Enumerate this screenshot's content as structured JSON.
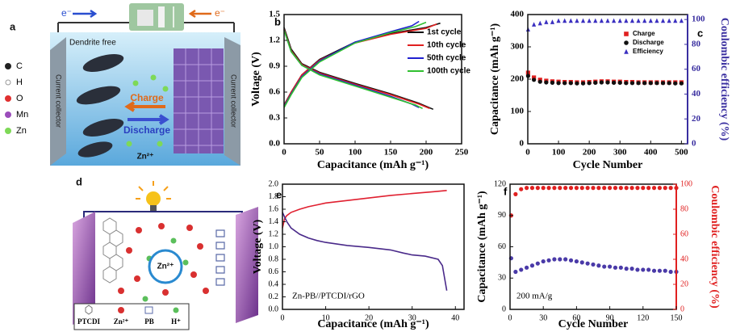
{
  "chart_data": [
    {
      "type": "line",
      "label": "b",
      "x_label": "Capacitance (mAh g⁻¹)",
      "y_label": "Voltage (V)",
      "xlim": [
        0,
        250
      ],
      "xticks": [
        0,
        50,
        100,
        150,
        200,
        250
      ],
      "ylim": [
        0,
        1.5
      ],
      "yticks": [
        {
          "value": 0,
          "label": "0.0"
        },
        0.3,
        0.6,
        0.9,
        1.2,
        1.5
      ],
      "legend": "upper right",
      "series": [
        {
          "name": "1st cycle",
          "color": "#111111",
          "x": [
            0,
            10,
            25,
            50,
            100,
            150,
            190,
            210,
            null,
            0,
            10,
            25,
            50,
            100,
            150,
            200,
            220
          ],
          "values": [
            1.35,
            1.1,
            0.93,
            0.83,
            0.7,
            0.58,
            0.47,
            0.4,
            null,
            0.45,
            0.6,
            0.8,
            0.98,
            1.18,
            1.28,
            1.35,
            1.4
          ]
        },
        {
          "name": "10th cycle",
          "color": "#e02020",
          "x": [
            0,
            10,
            25,
            50,
            100,
            150,
            190,
            205,
            null,
            0,
            10,
            25,
            50,
            100,
            150,
            200,
            215
          ],
          "values": [
            1.33,
            1.08,
            0.92,
            0.82,
            0.69,
            0.57,
            0.46,
            0.41,
            null,
            0.44,
            0.6,
            0.8,
            0.97,
            1.17,
            1.27,
            1.34,
            1.39
          ]
        },
        {
          "name": "50th cycle",
          "color": "#2020d0",
          "x": [
            0,
            10,
            25,
            50,
            100,
            150,
            180,
            190,
            null,
            0,
            10,
            25,
            50,
            100,
            150,
            180,
            190
          ],
          "values": [
            1.32,
            1.07,
            0.91,
            0.81,
            0.68,
            0.55,
            0.46,
            0.42,
            null,
            0.43,
            0.58,
            0.78,
            0.96,
            1.18,
            1.3,
            1.37,
            1.42
          ]
        },
        {
          "name": "100th cycle",
          "color": "#30c030",
          "x": [
            0,
            10,
            25,
            50,
            100,
            150,
            185,
            195,
            null,
            0,
            10,
            25,
            50,
            100,
            150,
            185,
            200
          ],
          "values": [
            1.32,
            1.07,
            0.91,
            0.8,
            0.67,
            0.54,
            0.45,
            0.41,
            null,
            0.42,
            0.57,
            0.77,
            0.95,
            1.17,
            1.29,
            1.36,
            1.41
          ]
        }
      ]
    },
    {
      "type": "scatter",
      "label": "c",
      "x_label": "Cycle Number",
      "y_label": "Capacitance (mAh g⁻¹)",
      "y2_label": "Coulombic efficiency (%)",
      "xlim": [
        0,
        520
      ],
      "xticks": [
        0,
        100,
        200,
        300,
        400,
        500
      ],
      "ylim": [
        0,
        400
      ],
      "yticks": [
        0,
        100,
        200,
        300,
        400
      ],
      "y2lim": [
        0,
        104
      ],
      "y2ticks": [
        0,
        20,
        40,
        60,
        80,
        100
      ],
      "y2_color": "#3a2fa0",
      "legend": "upper right",
      "series": [
        {
          "name": "Charge",
          "color": "#e02020",
          "marker": "square",
          "x": [
            1,
            20,
            40,
            60,
            80,
            100,
            120,
            140,
            160,
            180,
            200,
            220,
            240,
            260,
            280,
            300,
            320,
            340,
            360,
            380,
            400,
            420,
            440,
            460,
            480,
            500
          ],
          "values": [
            220,
            205,
            198,
            195,
            193,
            192,
            191,
            191,
            190,
            190,
            191,
            192,
            193,
            193,
            192,
            192,
            191,
            191,
            190,
            190,
            190,
            190,
            190,
            190,
            190,
            190
          ]
        },
        {
          "name": "Discharge",
          "color": "#111111",
          "marker": "circle",
          "x": [
            1,
            20,
            40,
            60,
            80,
            100,
            120,
            140,
            160,
            180,
            200,
            220,
            240,
            260,
            280,
            300,
            320,
            340,
            360,
            380,
            400,
            420,
            440,
            460,
            480,
            500
          ],
          "values": [
            210,
            198,
            192,
            190,
            189,
            188,
            188,
            188,
            187,
            187,
            188,
            189,
            190,
            190,
            189,
            189,
            188,
            188,
            188,
            188,
            188,
            188,
            188,
            188,
            187,
            187
          ]
        },
        {
          "name": "Efficiency",
          "color": "#3a2fc0",
          "marker": "triangle",
          "axis": "y2",
          "x": [
            1,
            20,
            40,
            60,
            80,
            100,
            120,
            140,
            160,
            180,
            200,
            220,
            240,
            260,
            280,
            300,
            320,
            340,
            360,
            380,
            400,
            420,
            440,
            460,
            480,
            500
          ],
          "values": [
            92,
            96,
            97,
            98,
            98,
            99,
            99,
            99,
            99,
            99,
            99,
            99,
            99,
            99,
            99,
            99,
            99,
            99,
            99,
            99,
            99,
            99,
            99,
            99,
            99,
            99
          ]
        }
      ]
    },
    {
      "type": "line",
      "label": "e",
      "x_label": "Capacitance (mAh g⁻¹)",
      "y_label": "Voltage (V)",
      "annotation": "Zn-PB//PTCDI/rGO",
      "xlim": [
        0,
        42
      ],
      "xticks": [
        0,
        10,
        20,
        30,
        40
      ],
      "ylim": [
        0,
        2.0
      ],
      "yticks": [
        {
          "value": 0,
          "label": "0.0"
        },
        0.2,
        0.4,
        0.6,
        0.8,
        {
          "value": 1,
          "label": "1.0"
        },
        1.2,
        1.4,
        1.6,
        1.8,
        {
          "value": 2,
          "label": "2.0"
        }
      ],
      "series": [
        {
          "color": "#e02030",
          "x": [
            0,
            0.5,
            1,
            2,
            4,
            6,
            8,
            10,
            15,
            20,
            25,
            30,
            35,
            38
          ],
          "values": [
            1.3,
            1.45,
            1.5,
            1.55,
            1.6,
            1.64,
            1.67,
            1.7,
            1.74,
            1.78,
            1.82,
            1.85,
            1.88,
            1.9
          ]
        },
        {
          "color": "#4a2a8a",
          "x": [
            0,
            1,
            2,
            4,
            6,
            8,
            10,
            15,
            20,
            25,
            28,
            30,
            33,
            36,
            37,
            38
          ],
          "values": [
            1.55,
            1.4,
            1.3,
            1.2,
            1.14,
            1.1,
            1.07,
            1.02,
            0.99,
            0.95,
            0.9,
            0.87,
            0.85,
            0.8,
            0.7,
            0.3
          ]
        }
      ]
    },
    {
      "type": "scatter",
      "label": "f",
      "x_label": "Cycle Number",
      "y_label": "Capacitance (mAh g⁻¹)",
      "y2_label": "Coulombic efficiency (%)",
      "annotation": "200 mA/g",
      "xlim": [
        0,
        150
      ],
      "xticks": [
        0,
        30,
        60,
        90,
        120,
        150
      ],
      "ylim": [
        0,
        120
      ],
      "yticks": [
        0,
        30,
        60,
        90,
        120
      ],
      "y2lim": [
        0,
        100
      ],
      "y2ticks": [
        0,
        20,
        40,
        60,
        80,
        100
      ],
      "y2_color": "#e02020",
      "series": [
        {
          "color": "#4a3aa8",
          "marker": "circle",
          "x": [
            1,
            5,
            10,
            15,
            20,
            25,
            30,
            35,
            40,
            45,
            50,
            55,
            60,
            65,
            70,
            75,
            80,
            85,
            90,
            95,
            100,
            105,
            110,
            115,
            120,
            125,
            130,
            135,
            140,
            145,
            150
          ],
          "values": [
            49,
            36,
            38,
            40,
            42,
            44,
            46,
            47,
            48,
            48,
            48,
            47,
            46,
            45,
            44,
            43,
            42,
            41,
            41,
            40,
            40,
            39,
            39,
            38,
            38,
            38,
            37,
            37,
            37,
            36,
            36
          ]
        },
        {
          "color": "#e02020",
          "marker": "circle",
          "axis": "y2",
          "x": [
            1,
            5,
            10,
            15,
            20,
            25,
            30,
            35,
            40,
            45,
            50,
            55,
            60,
            65,
            70,
            75,
            80,
            85,
            90,
            95,
            100,
            105,
            110,
            115,
            120,
            125,
            130,
            135,
            140,
            145,
            150
          ],
          "values": [
            75,
            92,
            96,
            97,
            97,
            97,
            97,
            97,
            97,
            97,
            97,
            97,
            97,
            97,
            97,
            97,
            97,
            97,
            97,
            97,
            97,
            97,
            97,
            97,
            97,
            97,
            97,
            97,
            97,
            97,
            97
          ]
        }
      ]
    }
  ],
  "panel_a": {
    "label": "a",
    "electron_left": "e⁻",
    "electron_right": "e⁻",
    "dendrite": "Dendrite free",
    "legend": [
      "C",
      "H",
      "O",
      "Mn",
      "Zn"
    ],
    "collector_left": "Current collector",
    "collector_right": "Current collector",
    "charge": "Charge",
    "discharge": "Discharge",
    "ion": "Zn²⁺"
  },
  "panel_d": {
    "label": "d",
    "ion": "Zn²⁺",
    "legend": [
      "PTCDI",
      "Zn²⁺",
      "PB",
      "H⁺"
    ]
  }
}
